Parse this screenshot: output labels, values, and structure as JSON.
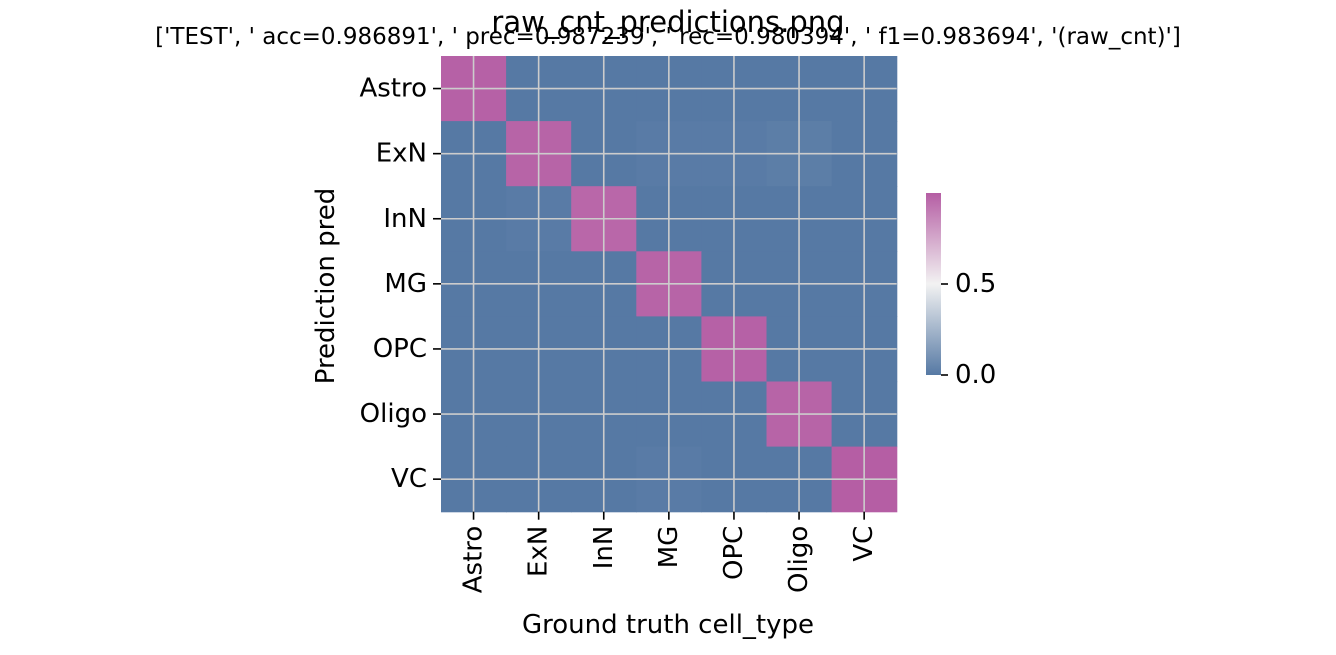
{
  "chart_data": {
    "type": "heatmap",
    "title_overlay": "raw_cnt_predictions.png",
    "title_main": "['TEST', ' acc=0.986891', '  prec=0.987239', ' rec=0.980394', ' f1=0.983694', '(raw_cnt)']",
    "xlabel": "Ground truth cell_type",
    "ylabel": "Prediction pred",
    "x_categories": [
      "Astro",
      "ExN",
      "InN",
      "MG",
      "OPC",
      "Oligo",
      "VC"
    ],
    "y_categories": [
      "Astro",
      "ExN",
      "InN",
      "MG",
      "OPC",
      "Oligo",
      "VC"
    ],
    "values": [
      [
        0.99,
        0.0,
        0.0,
        0.0,
        0.0,
        0.0,
        0.0
      ],
      [
        0.0,
        0.98,
        0.0,
        0.01,
        0.01,
        0.02,
        0.0
      ],
      [
        0.0,
        0.01,
        0.97,
        0.0,
        0.0,
        0.0,
        0.0
      ],
      [
        0.0,
        0.0,
        0.0,
        0.98,
        0.0,
        0.0,
        0.0
      ],
      [
        0.0,
        0.0,
        0.0,
        0.0,
        0.99,
        0.0,
        0.0
      ],
      [
        0.0,
        0.0,
        0.0,
        0.0,
        0.0,
        0.98,
        0.0
      ],
      [
        0.0,
        0.0,
        0.0,
        0.01,
        0.0,
        0.0,
        1.0
      ]
    ],
    "colorbar": {
      "vmin": 0.0,
      "vmax": 1.0,
      "ticks": [
        0.0,
        0.5
      ],
      "tick_labels": [
        "0.0",
        "0.5"
      ],
      "colors": {
        "low": "#5679a4",
        "mid": "#f2f2f2",
        "high": "#b55ea4"
      }
    },
    "grid": true
  }
}
